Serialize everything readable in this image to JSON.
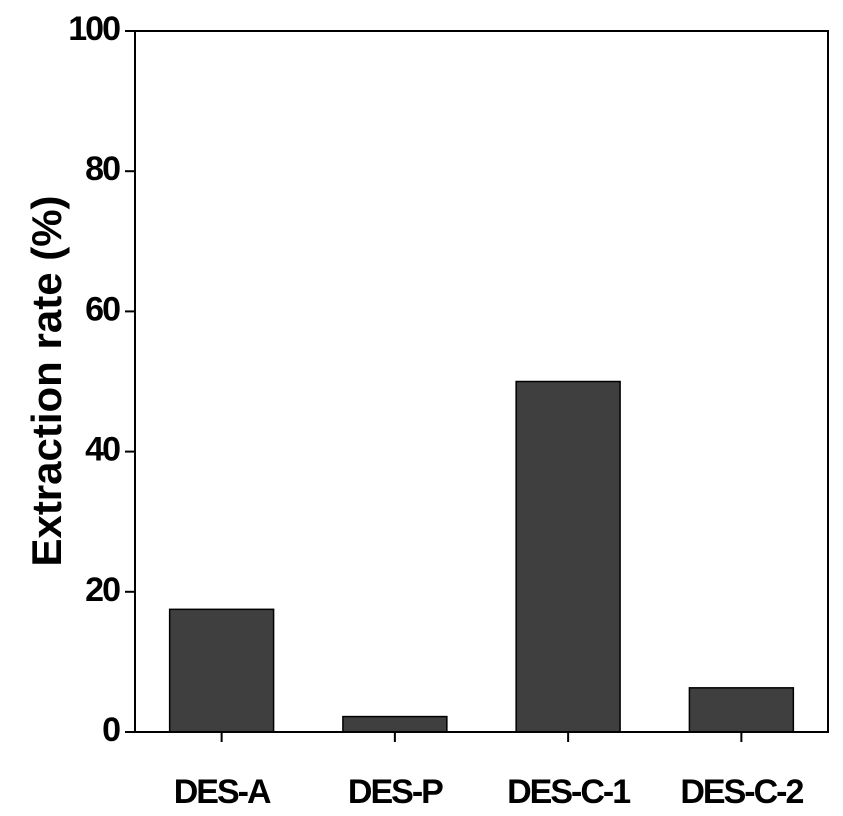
{
  "chart_data": {
    "type": "bar",
    "title": "",
    "xlabel": "",
    "ylabel": "Extraction rate (%)",
    "categories": [
      "DES-A",
      "DES-P",
      "DES-C-1",
      "DES-C-2"
    ],
    "values": [
      17.5,
      2.2,
      50.0,
      6.3
    ],
    "ylim": [
      0,
      100
    ],
    "yticks": [
      0,
      20,
      40,
      60,
      80,
      100
    ],
    "grid": false,
    "legend": "none",
    "bar_color": "#3f3f3f"
  }
}
